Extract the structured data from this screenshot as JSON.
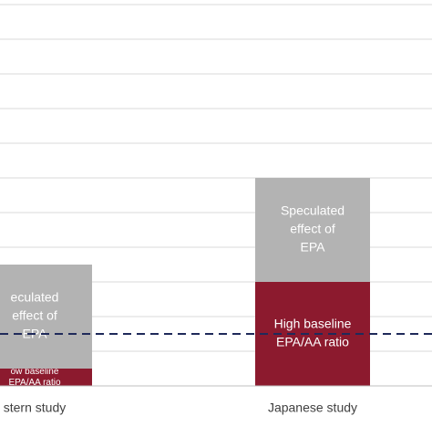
{
  "chart_data": {
    "type": "bar",
    "stacked": true,
    "categories": [
      "Western study",
      "Japanese study"
    ],
    "category_labels_visible": [
      "stern study",
      "Japanese study"
    ],
    "ylim": [
      0,
      11
    ],
    "grid": true,
    "series": [
      {
        "color": "#8c1a2e",
        "values": [
          0.5,
          3.0
        ],
        "segment_labels": [
          [
            "ow baseline",
            "EPA/AA ratio"
          ],
          [
            "High baseline",
            "EPA/AA ratio"
          ]
        ]
      },
      {
        "color": "#b3b3b3",
        "values": [
          3.0,
          3.0
        ],
        "segment_labels": [
          [
            "eculated",
            "effect of",
            "EPA"
          ],
          [
            "Speculated",
            "effect of",
            "EPA"
          ]
        ]
      }
    ],
    "reference_line": {
      "value": 1.5,
      "style": "dashed",
      "color": "#1f2a5a"
    }
  }
}
